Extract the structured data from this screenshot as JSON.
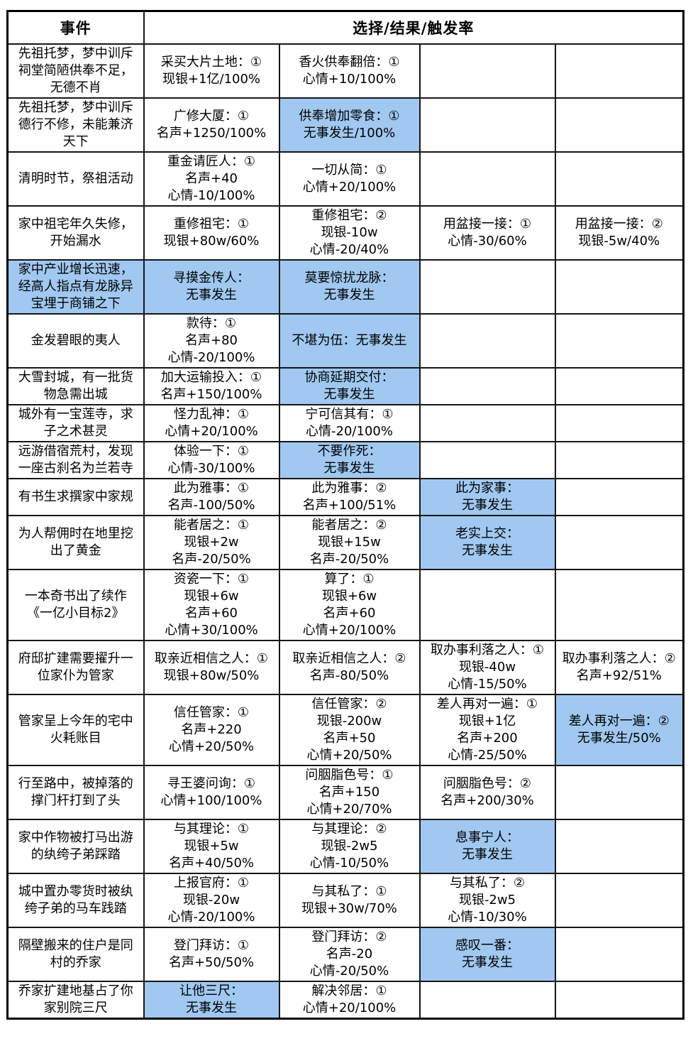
{
  "table": {
    "header": {
      "event_col": "事件",
      "choices_col": "选择/结果/触发率"
    },
    "colors": {
      "highlight": "#a0c8f0",
      "border": "#161616",
      "background": "#ffffff"
    },
    "rows": [
      {
        "event": {
          "lines": [
            "先祖托梦，梦中训斥",
            "祠堂简陋供奉不足，",
            "无德不肖"
          ],
          "highlight": false
        },
        "choices": [
          {
            "lines": [
              "采买大片土地：①",
              "现银+1亿/100%"
            ],
            "highlight": false
          },
          {
            "lines": [
              "香火供奉翻倍：①",
              "心情+10/100%"
            ],
            "highlight": false
          },
          {
            "lines": [],
            "highlight": false
          },
          {
            "lines": [],
            "highlight": false
          }
        ]
      },
      {
        "event": {
          "lines": [
            "先祖托梦，梦中训斥",
            "德行不修，未能兼济",
            "天下"
          ],
          "highlight": false
        },
        "choices": [
          {
            "lines": [
              "广修大厦：①",
              "名声+1250/100%"
            ],
            "highlight": false
          },
          {
            "lines": [
              "供奉增加零食：①",
              "无事发生/100%"
            ],
            "highlight": true
          },
          {
            "lines": [],
            "highlight": false
          },
          {
            "lines": [],
            "highlight": false
          }
        ]
      },
      {
        "event": {
          "lines": [
            "清明时节，祭祖活动"
          ],
          "highlight": false
        },
        "choices": [
          {
            "lines": [
              "重金请匠人：①",
              "名声+40",
              "心情-10/100%"
            ],
            "highlight": false
          },
          {
            "lines": [
              "一切从简：①",
              "心情+20/100%"
            ],
            "highlight": false
          },
          {
            "lines": [],
            "highlight": false
          },
          {
            "lines": [],
            "highlight": false
          }
        ]
      },
      {
        "event": {
          "lines": [
            "家中祖宅年久失修，",
            "开始漏水"
          ],
          "highlight": false
        },
        "choices": [
          {
            "lines": [
              "重修祖宅：①",
              "现银+80w/60%"
            ],
            "highlight": false
          },
          {
            "lines": [
              "重修祖宅：②",
              "现银-10w",
              "心情-20/40%"
            ],
            "highlight": false
          },
          {
            "lines": [
              "用盆接一接：①",
              "心情-30/60%"
            ],
            "highlight": false
          },
          {
            "lines": [
              "用盆接一接：②",
              "现银-5w/40%"
            ],
            "highlight": false
          }
        ]
      },
      {
        "event": {
          "lines": [
            "家中产业增长迅速，",
            "经高人指点有龙脉异",
            "宝埋于商铺之下"
          ],
          "highlight": true
        },
        "choices": [
          {
            "lines": [
              "寻摸金传人：",
              "无事发生"
            ],
            "highlight": true
          },
          {
            "lines": [
              "莫要惊扰龙脉：",
              "无事发生"
            ],
            "highlight": true
          },
          {
            "lines": [],
            "highlight": false
          },
          {
            "lines": [],
            "highlight": false
          }
        ]
      },
      {
        "event": {
          "lines": [
            "金发碧眼的夷人"
          ],
          "highlight": false
        },
        "choices": [
          {
            "lines": [
              "款待：①",
              "名声+80",
              "心情-20/100%"
            ],
            "highlight": false
          },
          {
            "lines": [
              "不堪为伍：无事发生"
            ],
            "highlight": true
          },
          {
            "lines": [],
            "highlight": false
          },
          {
            "lines": [],
            "highlight": false
          }
        ]
      },
      {
        "event": {
          "lines": [
            "大雪封城，有一批货",
            "物急需出城"
          ],
          "highlight": false
        },
        "choices": [
          {
            "lines": [
              "加大运输投入：①",
              "名声+150/100%"
            ],
            "highlight": false
          },
          {
            "lines": [
              "协商延期交付：",
              "无事发生"
            ],
            "highlight": true
          },
          {
            "lines": [],
            "highlight": false
          },
          {
            "lines": [],
            "highlight": false
          }
        ]
      },
      {
        "event": {
          "lines": [
            "城外有一宝莲寺，求",
            "子之术甚灵"
          ],
          "highlight": false
        },
        "choices": [
          {
            "lines": [
              "怪力乱神：①",
              "心情+20/100%"
            ],
            "highlight": false
          },
          {
            "lines": [
              "宁可信其有：①",
              "心情-20/100%"
            ],
            "highlight": false
          },
          {
            "lines": [],
            "highlight": false
          },
          {
            "lines": [],
            "highlight": false
          }
        ]
      },
      {
        "event": {
          "lines": [
            "远游借宿荒村，发现",
            "一座古刹名为兰若寺"
          ],
          "highlight": false
        },
        "choices": [
          {
            "lines": [
              "体验一下：①",
              "心情-30/100%"
            ],
            "highlight": false
          },
          {
            "lines": [
              "不要作死：",
              "无事发生"
            ],
            "highlight": true
          },
          {
            "lines": [],
            "highlight": false
          },
          {
            "lines": [],
            "highlight": false
          }
        ]
      },
      {
        "event": {
          "lines": [
            "有书生求撰家中家规"
          ],
          "highlight": false
        },
        "choices": [
          {
            "lines": [
              "此为雅事：①",
              "名声-100/50%"
            ],
            "highlight": false
          },
          {
            "lines": [
              "此为雅事：②",
              "名声+100/51%"
            ],
            "highlight": false
          },
          {
            "lines": [
              "此为家事：",
              "无事发生"
            ],
            "highlight": true
          },
          {
            "lines": [],
            "highlight": false
          }
        ]
      },
      {
        "event": {
          "lines": [
            "为人帮佣时在地里挖",
            "出了黄金"
          ],
          "highlight": false
        },
        "choices": [
          {
            "lines": [
              "能者居之：①",
              "现银+2w",
              "名声-20/50%"
            ],
            "highlight": false
          },
          {
            "lines": [
              "能者居之：②",
              "现银+15w",
              "名声-20/50%"
            ],
            "highlight": false
          },
          {
            "lines": [
              "老实上交：",
              "无事发生"
            ],
            "highlight": true
          },
          {
            "lines": [],
            "highlight": false
          }
        ]
      },
      {
        "event": {
          "lines": [
            "一本奇书出了续作",
            "《一亿小目标2》"
          ],
          "highlight": false
        },
        "choices": [
          {
            "lines": [
              "资瓷一下：①",
              "现银+6w",
              "名声+60",
              "心情+30/100%"
            ],
            "highlight": false
          },
          {
            "lines": [
              "算了：①",
              "现银+6w",
              "名声+60",
              "心情+20/100%"
            ],
            "highlight": false
          },
          {
            "lines": [],
            "highlight": false
          },
          {
            "lines": [],
            "highlight": false
          }
        ]
      },
      {
        "event": {
          "lines": [
            "府邸扩建需要擢升一",
            "位家仆为管家"
          ],
          "highlight": false
        },
        "choices": [
          {
            "lines": [
              "取亲近相信之人：①",
              "现银+80w/50%"
            ],
            "highlight": false
          },
          {
            "lines": [
              "取亲近相信之人：②",
              "名声-80/50%"
            ],
            "highlight": false
          },
          {
            "lines": [
              "取办事利落之人：①",
              "现银-40w",
              "心情-15/50%"
            ],
            "highlight": false
          },
          {
            "lines": [
              "取办事利落之人：②",
              "名声+92/51%"
            ],
            "highlight": false
          }
        ]
      },
      {
        "event": {
          "lines": [
            "管家呈上今年的宅中",
            "火耗账目"
          ],
          "highlight": false
        },
        "choices": [
          {
            "lines": [
              "信任管家：①",
              "名声+220",
              "心情+20/50%"
            ],
            "highlight": false
          },
          {
            "lines": [
              "信任管家：②",
              "现银-200w",
              "名声+50",
              "心情+20/50%"
            ],
            "highlight": false
          },
          {
            "lines": [
              "差人再对一遍：①",
              "现银+1亿",
              "名声+200",
              "心情-25/50%"
            ],
            "highlight": false
          },
          {
            "lines": [
              "差人再对一遍：②",
              "无事发生/50%"
            ],
            "highlight": true
          }
        ]
      },
      {
        "event": {
          "lines": [
            "行至路中，被掉落的",
            "撑门杆打到了头"
          ],
          "highlight": false
        },
        "choices": [
          {
            "lines": [
              "寻王婆问询：①",
              "心情+100/100%"
            ],
            "highlight": false
          },
          {
            "lines": [
              "问胭脂色号：①",
              "名声+150",
              "心情+20/70%"
            ],
            "highlight": false
          },
          {
            "lines": [
              "问胭脂色号：②",
              "名声+200/30%"
            ],
            "highlight": false
          },
          {
            "lines": [],
            "highlight": false
          }
        ]
      },
      {
        "event": {
          "lines": [
            "家中作物被打马出游",
            "的纨绔子弟踩踏"
          ],
          "highlight": false
        },
        "choices": [
          {
            "lines": [
              "与其理论：①",
              "现银+5w",
              "名声+40/50%"
            ],
            "highlight": false
          },
          {
            "lines": [
              "与其理论：②",
              "现银-2w5",
              "心情-10/50%"
            ],
            "highlight": false
          },
          {
            "lines": [
              "息事宁人：",
              "无事发生"
            ],
            "highlight": true
          },
          {
            "lines": [],
            "highlight": false
          }
        ]
      },
      {
        "event": {
          "lines": [
            "城中置办零货时被纨",
            "绔子弟的马车践踏"
          ],
          "highlight": false
        },
        "choices": [
          {
            "lines": [
              "上报官府：①",
              "现银-20w",
              "心情-20/100%"
            ],
            "highlight": false
          },
          {
            "lines": [
              "与其私了：①",
              "现银+30w/70%"
            ],
            "highlight": false
          },
          {
            "lines": [
              "与其私了：②",
              "现银-2w5",
              "心情-10/30%"
            ],
            "highlight": false
          },
          {
            "lines": [],
            "highlight": false
          }
        ]
      },
      {
        "event": {
          "lines": [
            "隔壁搬来的住户是同",
            "村的乔家"
          ],
          "highlight": false
        },
        "choices": [
          {
            "lines": [
              "登门拜访：①",
              "名声+50/50%"
            ],
            "highlight": false
          },
          {
            "lines": [
              "登门拜访：②",
              "名声-20",
              "心情-20/50%"
            ],
            "highlight": false
          },
          {
            "lines": [
              "感叹一番：",
              "无事发生"
            ],
            "highlight": true
          },
          {
            "lines": [],
            "highlight": false
          }
        ]
      },
      {
        "event": {
          "lines": [
            "乔家扩建地基占了你",
            "家别院三尺"
          ],
          "highlight": false
        },
        "choices": [
          {
            "lines": [
              "让他三尺：",
              "无事发生"
            ],
            "highlight": true
          },
          {
            "lines": [
              "解决邻居：①",
              "心情+20/100%"
            ],
            "highlight": false
          },
          {
            "lines": [],
            "highlight": false
          },
          {
            "lines": [],
            "highlight": false
          }
        ]
      }
    ]
  }
}
